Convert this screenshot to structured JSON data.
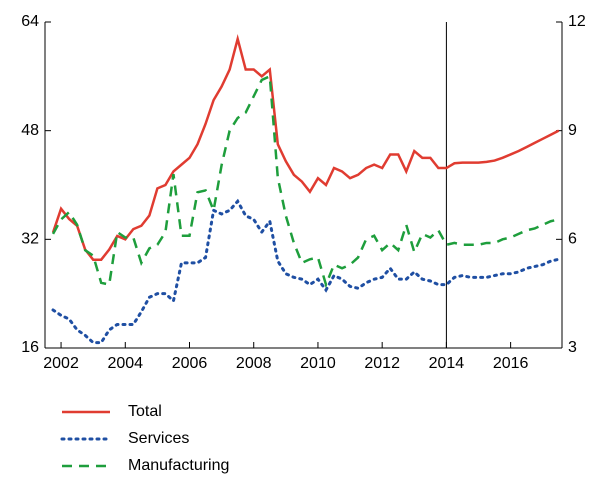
{
  "chart_data": {
    "type": "line",
    "x": [
      2001.75,
      2002,
      2002.25,
      2002.5,
      2002.75,
      2003,
      2003.25,
      2003.5,
      2003.75,
      2004,
      2004.25,
      2004.5,
      2004.75,
      2005,
      2005.25,
      2005.5,
      2005.75,
      2006,
      2006.25,
      2006.5,
      2006.75,
      2007,
      2007.25,
      2007.5,
      2007.75,
      2008,
      2008.25,
      2008.5,
      2008.75,
      2009,
      2009.25,
      2009.5,
      2009.75,
      2010,
      2010.25,
      2010.5,
      2010.75,
      2011,
      2011.25,
      2011.5,
      2011.75,
      2012,
      2012.25,
      2012.5,
      2012.75,
      2013,
      2013.25,
      2013.5,
      2013.75,
      2014,
      2014.25,
      2014.5,
      2014.75,
      2015,
      2015.25,
      2015.5,
      2015.75,
      2016,
      2016.25,
      2016.5,
      2016.75,
      2017,
      2017.25,
      2017.5
    ],
    "series": [
      {
        "name": "Total",
        "color": "#e03c31",
        "dash": "solid",
        "axis": "y",
        "values": [
          33,
          36.5,
          35,
          34,
          30.5,
          29,
          29,
          30.5,
          32.5,
          32,
          33.5,
          34,
          35.5,
          39.5,
          40,
          42,
          43,
          44,
          46,
          49,
          52.5,
          54.5,
          57,
          61.5,
          57,
          57,
          56,
          57,
          46,
          43.5,
          41.5,
          40.5,
          39,
          41,
          40,
          42.5,
          42,
          41,
          41.5,
          42.5,
          43,
          42.5,
          44.5,
          44.5,
          42,
          45,
          44,
          44,
          42.5,
          42.5,
          43.2,
          43.3,
          43.3,
          43.3,
          43.4,
          43.6,
          44,
          44.5,
          45,
          45.6,
          46.2,
          46.8,
          47.4,
          48
        ]
      },
      {
        "name": "Services",
        "color": "#1f4fa3",
        "dash": "dotted",
        "axis": "y2",
        "values": [
          4.05,
          3.9,
          3.8,
          3.5,
          3.35,
          3.15,
          3.15,
          3.5,
          3.65,
          3.65,
          3.65,
          4.0,
          4.4,
          4.5,
          4.5,
          4.3,
          5.35,
          5.35,
          5.35,
          5.5,
          6.8,
          6.7,
          6.8,
          7.05,
          6.65,
          6.55,
          6.2,
          6.5,
          5.4,
          5.05,
          4.95,
          4.9,
          4.75,
          4.9,
          4.6,
          5.0,
          4.9,
          4.7,
          4.65,
          4.8,
          4.9,
          4.95,
          5.2,
          4.9,
          4.9,
          5.1,
          4.9,
          4.85,
          4.75,
          4.75,
          4.95,
          5.0,
          4.95,
          4.95,
          4.95,
          5.0,
          5.05,
          5.05,
          5.1,
          5.2,
          5.25,
          5.3,
          5.4,
          5.45
        ]
      },
      {
        "name": "Manufacturing",
        "color": "#1e9e3c",
        "dash": "dashed",
        "axis": "y2",
        "values": [
          6.15,
          6.55,
          6.75,
          6.4,
          5.7,
          5.55,
          4.8,
          4.75,
          6.2,
          6.05,
          6.05,
          5.35,
          5.75,
          5.85,
          6.2,
          7.8,
          6.1,
          6.1,
          7.3,
          7.35,
          6.8,
          8.05,
          9.0,
          9.35,
          9.5,
          9.95,
          10.4,
          10.5,
          7.7,
          6.65,
          5.9,
          5.35,
          5.45,
          5.5,
          4.75,
          5.3,
          5.2,
          5.3,
          5.5,
          6.0,
          6.1,
          5.7,
          5.9,
          5.7,
          6.4,
          5.65,
          6.15,
          6.05,
          6.25,
          5.85,
          5.9,
          5.85,
          5.85,
          5.85,
          5.9,
          5.9,
          6.0,
          6.05,
          6.15,
          6.25,
          6.3,
          6.4,
          6.5,
          6.55
        ]
      }
    ],
    "xlim": [
      2001.5,
      2017.6
    ],
    "xticks": [
      2002,
      2004,
      2006,
      2008,
      2010,
      2012,
      2014,
      2016
    ],
    "ylim": [
      16,
      64
    ],
    "yticks": [
      16,
      32,
      48,
      64
    ],
    "y2lim": [
      3,
      12
    ],
    "y2ticks": [
      3,
      6,
      9,
      12
    ],
    "vlines": [
      2014
    ],
    "grid": false,
    "legend": "bottom"
  }
}
